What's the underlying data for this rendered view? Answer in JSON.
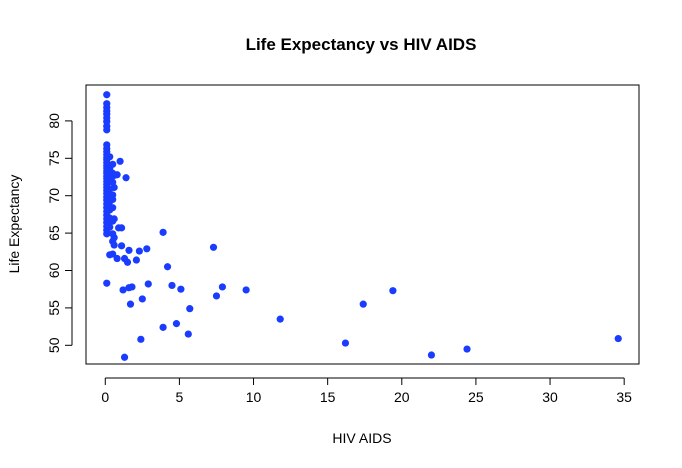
{
  "chart_data": {
    "type": "scatter",
    "title": "Life Expectancy vs HIV AIDS",
    "xlabel": "HIV AIDS",
    "ylabel": "Life Expectancy",
    "xlim": [
      -1.3,
      36.0
    ],
    "ylim": [
      47.5,
      84.8
    ],
    "xticks": [
      0,
      5,
      10,
      15,
      20,
      25,
      30,
      35
    ],
    "yticks": [
      50,
      55,
      60,
      65,
      70,
      75,
      80
    ],
    "point_color": "#1a3cff",
    "series": [
      {
        "name": "countries",
        "points": [
          [
            0.1,
            83.5
          ],
          [
            0.1,
            82.3
          ],
          [
            0.1,
            81.8
          ],
          [
            0.1,
            81.3
          ],
          [
            0.1,
            80.9
          ],
          [
            0.1,
            80.4
          ],
          [
            0.1,
            79.9
          ],
          [
            0.1,
            79.3
          ],
          [
            0.1,
            78.8
          ],
          [
            0.1,
            76.8
          ],
          [
            0.1,
            76.3
          ],
          [
            0.1,
            75.9
          ],
          [
            0.1,
            75.5
          ],
          [
            0.1,
            75.1
          ],
          [
            0.1,
            74.8
          ],
          [
            0.1,
            74.4
          ],
          [
            0.1,
            74.0
          ],
          [
            0.1,
            73.7
          ],
          [
            0.1,
            73.3
          ],
          [
            0.1,
            73.0
          ],
          [
            0.1,
            72.6
          ],
          [
            0.1,
            72.3
          ],
          [
            0.1,
            71.9
          ],
          [
            0.1,
            71.5
          ],
          [
            0.1,
            71.1
          ],
          [
            0.1,
            70.7
          ],
          [
            0.1,
            70.3
          ],
          [
            0.1,
            69.8
          ],
          [
            0.1,
            69.4
          ],
          [
            0.1,
            68.9
          ],
          [
            0.1,
            68.4
          ],
          [
            0.1,
            67.9
          ],
          [
            0.1,
            67.4
          ],
          [
            0.1,
            66.9
          ],
          [
            0.1,
            66.4
          ],
          [
            0.1,
            65.9
          ],
          [
            0.1,
            65.4
          ],
          [
            0.1,
            64.9
          ],
          [
            0.1,
            58.3
          ],
          [
            0.3,
            75.2
          ],
          [
            0.3,
            73.6
          ],
          [
            0.3,
            72.9
          ],
          [
            0.3,
            72.1
          ],
          [
            0.3,
            70.9
          ],
          [
            0.3,
            69.2
          ],
          [
            0.3,
            68.1
          ],
          [
            0.3,
            67.0
          ],
          [
            0.3,
            65.8
          ],
          [
            0.3,
            62.1
          ],
          [
            0.5,
            74.2
          ],
          [
            0.5,
            73.0
          ],
          [
            0.5,
            71.8
          ],
          [
            0.5,
            70.1
          ],
          [
            0.5,
            69.5
          ],
          [
            0.5,
            68.4
          ],
          [
            0.5,
            66.6
          ],
          [
            0.5,
            64.9
          ],
          [
            0.5,
            63.9
          ],
          [
            0.5,
            62.2
          ],
          [
            0.6,
            72.7
          ],
          [
            0.6,
            71.1
          ],
          [
            0.6,
            66.9
          ],
          [
            0.6,
            64.4
          ],
          [
            0.6,
            63.4
          ],
          [
            0.8,
            72.8
          ],
          [
            0.8,
            61.6
          ],
          [
            0.9,
            65.7
          ],
          [
            1.0,
            74.6
          ],
          [
            1.1,
            65.7
          ],
          [
            1.1,
            63.3
          ],
          [
            1.2,
            57.4
          ],
          [
            1.3,
            61.6
          ],
          [
            1.3,
            48.4
          ],
          [
            1.4,
            72.4
          ],
          [
            1.5,
            61.1
          ],
          [
            1.6,
            62.7
          ],
          [
            1.6,
            57.7
          ],
          [
            1.7,
            55.5
          ],
          [
            1.8,
            57.8
          ],
          [
            2.1,
            61.4
          ],
          [
            2.3,
            62.6
          ],
          [
            2.4,
            50.8
          ],
          [
            2.5,
            56.2
          ],
          [
            2.8,
            62.9
          ],
          [
            2.9,
            58.2
          ],
          [
            3.9,
            52.4
          ],
          [
            3.9,
            65.1
          ],
          [
            4.2,
            60.5
          ],
          [
            4.5,
            58.0
          ],
          [
            4.8,
            52.9
          ],
          [
            5.1,
            57.5
          ],
          [
            5.6,
            51.5
          ],
          [
            5.7,
            54.9
          ],
          [
            7.3,
            63.1
          ],
          [
            7.5,
            56.6
          ],
          [
            7.9,
            57.8
          ],
          [
            9.5,
            57.4
          ],
          [
            11.8,
            53.5
          ],
          [
            16.2,
            50.3
          ],
          [
            17.4,
            55.5
          ],
          [
            19.4,
            57.3
          ],
          [
            22.0,
            48.7
          ],
          [
            24.4,
            49.5
          ],
          [
            34.6,
            50.9
          ]
        ]
      }
    ]
  }
}
